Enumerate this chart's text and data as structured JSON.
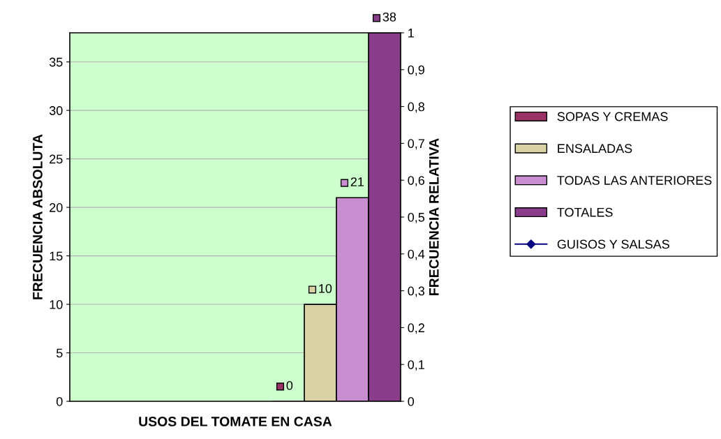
{
  "chart_data": {
    "type": "bar",
    "xlabel": "USOS DEL TOMATE EN CASA",
    "ylabel": "FRECUENCIA ABSOLUTA",
    "y2label": "FRECUENCIA RELATIVA",
    "categories": [
      null
    ],
    "series": [
      {
        "name": "SOPAS Y CREMAS",
        "color": "#993366",
        "values": [
          0
        ]
      },
      {
        "name": "ENSALADAS",
        "color": "#d8d2a4",
        "values": [
          10
        ]
      },
      {
        "name": "TODAS LAS ANTERIORES",
        "color": "#c88ed0",
        "values": [
          21
        ]
      },
      {
        "name": "TOTALES",
        "color": "#8a3d8a",
        "values": [
          38
        ]
      },
      {
        "name": "GUISOS Y SALSAS",
        "color": "#000080",
        "values": [
          null
        ],
        "type": "line",
        "marker": "diamond"
      }
    ],
    "ylim": [
      0,
      38
    ],
    "yticks": [
      0,
      5,
      10,
      15,
      20,
      25,
      30,
      35
    ],
    "y2lim": [
      0,
      1
    ],
    "y2ticks": [
      0,
      {
        "value": 0.1,
        "label": "0,1"
      },
      {
        "value": 0.2,
        "label": "0,2"
      },
      {
        "value": 0.3,
        "label": "0,3"
      },
      {
        "value": 0.4,
        "label": "0,4"
      },
      {
        "value": 0.5,
        "label": "0,5"
      },
      {
        "value": 0.6,
        "label": "0,6"
      },
      {
        "value": 0.7,
        "label": "0,7"
      },
      {
        "value": 0.8,
        "label": "0,8"
      },
      {
        "value": 0.9,
        "label": "0,9"
      },
      1
    ],
    "grid": "y",
    "legend": "right",
    "data_labels": true,
    "tick_labels": "y"
  }
}
